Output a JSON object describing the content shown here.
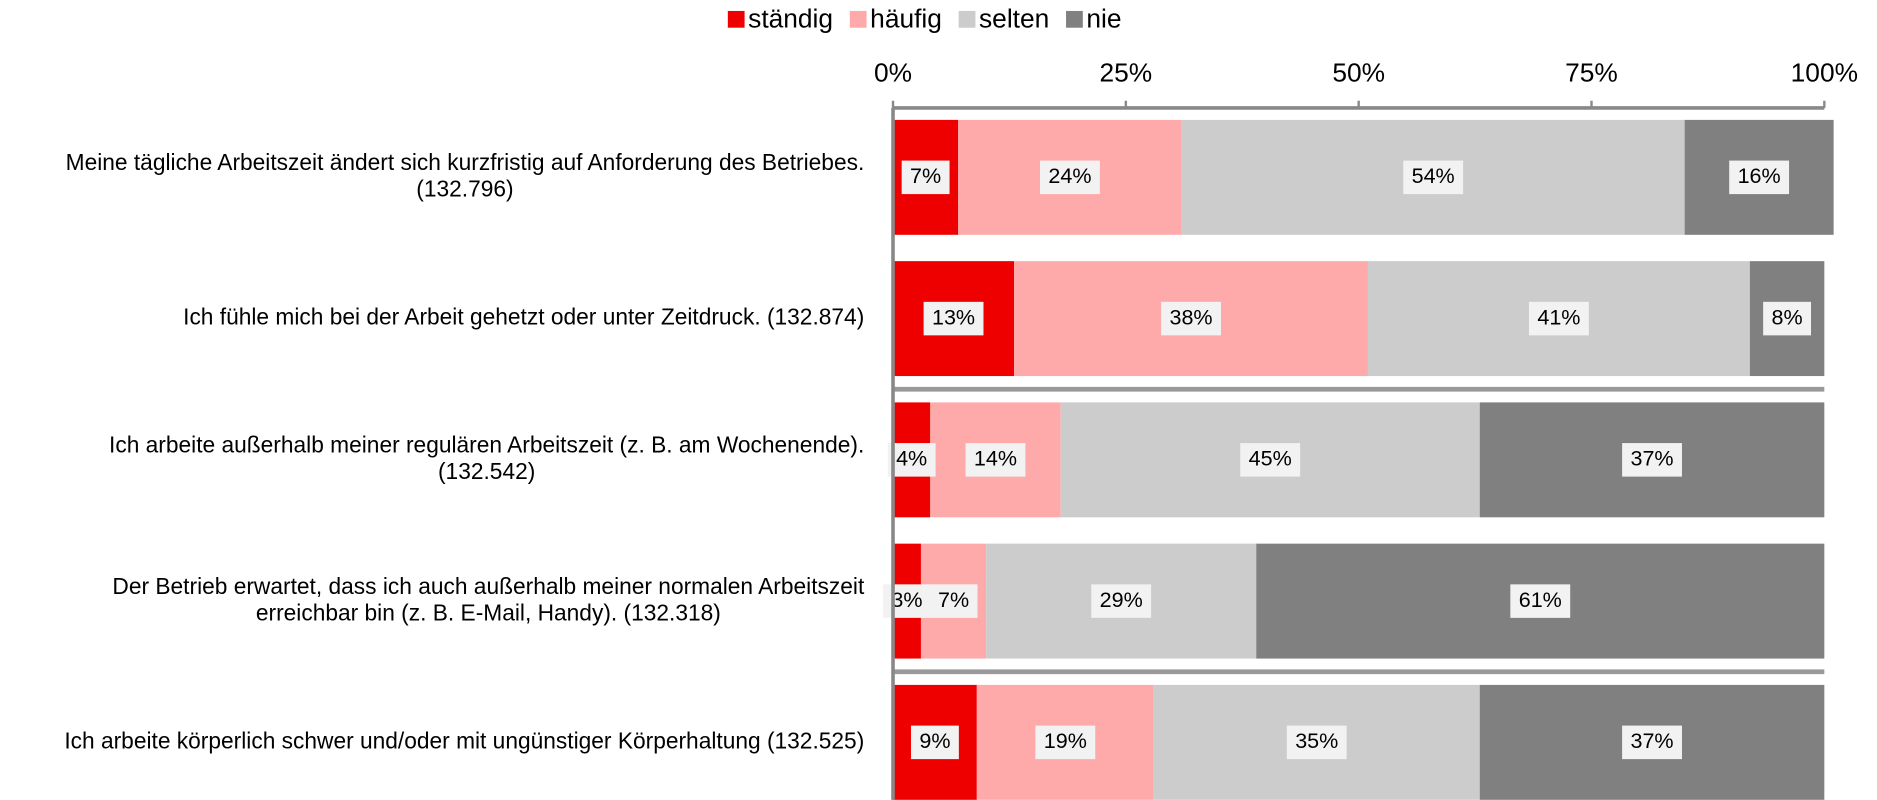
{
  "chart_data": {
    "type": "stacked_barh",
    "categories": [
      "Meine tägliche Arbeitszeit ändert sich kurzfristig auf Anforderung des Betriebes.\n(132.796)",
      "Ich fühle mich bei der Arbeit gehetzt oder unter Zeitdruck.  (132.874)",
      "Ich arbeite außerhalb meiner regulären Arbeitszeit (z. B. am Wochenende).\n(132.542)",
      "Der Betrieb erwartet, dass ich auch außerhalb meiner normalen Arbeitszeit\nerreichbar bin (z. B. E-Mail, Handy).  (132.318)",
      "Ich arbeite körperlich schwer und/oder mit ungünstiger Körperhaltung (132.525)"
    ],
    "series": [
      {
        "name": "ständig",
        "color": "#ee0000",
        "values": [
          7,
          13,
          4,
          3,
          9
        ],
        "value_labels": [
          "7%",
          "13%",
          "4%",
          "3%",
          "9%"
        ]
      },
      {
        "name": "häufig",
        "color": "#ffaaaa",
        "values": [
          24,
          38,
          14,
          7,
          19
        ],
        "value_labels": [
          "24%",
          "38%",
          "14%",
          "7%",
          "19%"
        ]
      },
      {
        "name": "selten",
        "color": "#cccccc",
        "values": [
          54,
          41,
          45,
          29,
          35
        ],
        "value_labels": [
          "54%",
          "41%",
          "45%",
          "29%",
          "35%"
        ]
      },
      {
        "name": "nie",
        "color": "#808080",
        "values": [
          16,
          8,
          37,
          61,
          37
        ],
        "value_labels": [
          "16%",
          "8%",
          "37%",
          "61%",
          "37%"
        ]
      }
    ],
    "xlim": [
      0,
      100
    ],
    "xticks": [
      {
        "value": 0,
        "label": "0%"
      },
      {
        "value": 25,
        "label": "25%"
      },
      {
        "value": 50,
        "label": "50%"
      },
      {
        "value": 75,
        "label": "75%"
      },
      {
        "value": 100,
        "label": "100%"
      }
    ],
    "legend": "top"
  }
}
